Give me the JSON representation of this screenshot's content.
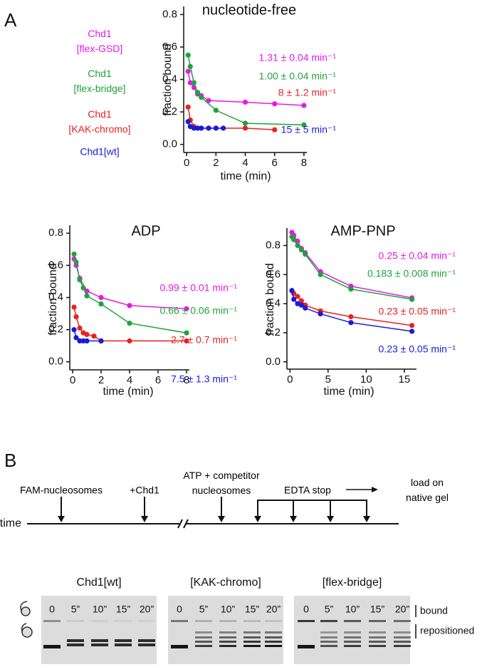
{
  "panel_labels": [
    "A",
    "B"
  ],
  "chart_data": [
    {
      "type": "line",
      "title": "nucleotide-free",
      "x_label": "time (min)",
      "y_label": "fraction bound",
      "xlim": [
        -0.2,
        8.2
      ],
      "xticks": [
        0,
        2,
        4,
        6,
        8
      ],
      "ylim": [
        -0.05,
        0.85
      ],
      "yticks": [
        {
          "value": 0,
          "label": "0.0"
        },
        0.2,
        0.4,
        0.6,
        0.8
      ],
      "series": [
        {
          "name": "Chd1\n[flex-GSD]",
          "color": "#e619e6",
          "x": [
            0.1,
            0.25,
            0.5,
            0.75,
            1,
            1.5,
            4,
            6,
            8
          ],
          "values": [
            0.45,
            0.38,
            0.35,
            0.31,
            0.3,
            0.27,
            0.26,
            0.25,
            0.24
          ],
          "rate_label": "1.31 ± 0.04 min⁻¹"
        },
        {
          "name": "Chd1\n[flex-bridge]",
          "color": "#1fa33a",
          "x": [
            0.1,
            0.25,
            0.5,
            0.75,
            1,
            2,
            4,
            8
          ],
          "values": [
            0.55,
            0.48,
            0.38,
            0.32,
            0.29,
            0.21,
            0.13,
            0.12
          ],
          "rate_label": "1.00 ± 0.04 min⁻¹"
        },
        {
          "name": "Chd1\n[KAK-chromo]",
          "color": "#e8221f",
          "x": [
            0.1,
            0.25,
            0.5,
            0.75,
            1,
            1.5,
            2,
            4,
            6
          ],
          "values": [
            0.23,
            0.15,
            0.11,
            0.1,
            0.1,
            0.1,
            0.1,
            0.1,
            0.09
          ],
          "rate_label": "8 ± 1.2 min⁻¹"
        },
        {
          "name": "Chd1[wt]",
          "color": "#1a1ad9",
          "x": [
            0.1,
            0.25,
            0.5,
            0.75,
            1,
            1.5,
            2,
            2.5
          ],
          "values": [
            0.14,
            0.11,
            0.1,
            0.1,
            0.1,
            0.1,
            0.1,
            0.1
          ],
          "rate_label": "15 ± 5 min⁻¹"
        }
      ]
    },
    {
      "type": "line",
      "title": "ADP",
      "x_label": "time (min)",
      "y_label": "fraction bound",
      "xlim": [
        -0.2,
        8.2
      ],
      "xticks": [
        0,
        2,
        4,
        6,
        8
      ],
      "ylim": [
        -0.05,
        0.85
      ],
      "yticks": [
        {
          "value": 0,
          "label": "0.0"
        },
        0.2,
        0.4,
        0.6,
        0.8
      ],
      "series": [
        {
          "color": "#e619e6",
          "x": [
            0.1,
            0.25,
            0.5,
            1,
            2,
            4,
            8
          ],
          "values": [
            0.64,
            0.6,
            0.52,
            0.44,
            0.4,
            0.35,
            0.33
          ],
          "rate_label": "0.99 ± 0.01 min⁻¹"
        },
        {
          "color": "#1fa33a",
          "x": [
            0.1,
            0.25,
            0.5,
            0.75,
            1,
            2,
            4,
            8
          ],
          "values": [
            0.67,
            0.62,
            0.51,
            0.46,
            0.41,
            0.36,
            0.24,
            0.18
          ],
          "rate_label": "0.66 ± 0.06 min⁻¹"
        },
        {
          "color": "#e8221f",
          "x": [
            0.1,
            0.25,
            0.5,
            0.75,
            1,
            1.5,
            2,
            4,
            8
          ],
          "values": [
            0.34,
            0.28,
            0.21,
            0.18,
            0.17,
            0.16,
            0.13,
            0.13,
            0.13
          ],
          "rate_label": "2.7 ± 0.7 min⁻¹"
        },
        {
          "color": "#1a1ad9",
          "x": [
            0.1,
            0.25,
            0.5,
            0.75,
            1,
            2
          ],
          "values": [
            0.2,
            0.15,
            0.13,
            0.13,
            0.13,
            0.13
          ],
          "rate_label": "7.5 ± 1.3 min⁻¹"
        }
      ]
    },
    {
      "type": "line",
      "title": "AMP-PNP",
      "x_label": "time (min)",
      "y_label": "fraction bound",
      "xlim": [
        -0.4,
        16.6
      ],
      "xticks": [
        0,
        5,
        10,
        15
      ],
      "ylim": [
        -0.05,
        0.92
      ],
      "yticks": [
        {
          "value": 0,
          "label": "0.0"
        },
        0.2,
        0.4,
        0.6,
        0.8
      ],
      "series": [
        {
          "color": "#e619e6",
          "x": [
            0.25,
            0.5,
            1,
            1.5,
            2,
            4,
            8,
            16
          ],
          "values": [
            0.89,
            0.87,
            0.83,
            0.78,
            0.75,
            0.62,
            0.52,
            0.44
          ],
          "rate_label": "0.25 ± 0.04 min⁻¹"
        },
        {
          "color": "#1fa33a",
          "x": [
            0.25,
            0.5,
            1,
            1.5,
            2,
            4,
            8,
            16
          ],
          "values": [
            0.86,
            0.84,
            0.8,
            0.77,
            0.74,
            0.6,
            0.5,
            0.43
          ],
          "rate_label": "0.183 ± 0.008 min⁻¹"
        },
        {
          "color": "#e8221f",
          "x": [
            0.25,
            0.5,
            1,
            1.5,
            2,
            4,
            8,
            16
          ],
          "values": [
            0.49,
            0.47,
            0.45,
            0.42,
            0.39,
            0.35,
            0.31,
            0.25
          ],
          "rate_label": "0.23 ± 0.05 min⁻¹"
        },
        {
          "color": "#1a1ad9",
          "x": [
            0.25,
            0.5,
            1,
            1.5,
            2,
            4,
            8,
            16
          ],
          "values": [
            0.49,
            0.43,
            0.4,
            0.39,
            0.37,
            0.33,
            0.27,
            0.21
          ],
          "rate_label": "0.23 ± 0.05 min⁻¹"
        }
      ]
    }
  ],
  "timeline": {
    "axis_label": "time",
    "events": [
      "FAM-nucleosomes",
      "+Chd1",
      "ATP + competitor\nnucleosomes",
      "EDTA stop",
      "load on native gel"
    ]
  },
  "gels": [
    {
      "title": "Chd1[wt]",
      "lanes": [
        "0",
        "5”",
        "10”",
        "15”",
        "20”"
      ]
    },
    {
      "title": "[KAK-chromo]",
      "lanes": [
        "0",
        "5”",
        "10”",
        "15”",
        "20”"
      ]
    },
    {
      "title": "[flex-bridge]",
      "lanes": [
        "0",
        "5”",
        "10”",
        "15”",
        "20”"
      ]
    }
  ],
  "gel_labels": [
    "bound",
    "repositioned"
  ]
}
